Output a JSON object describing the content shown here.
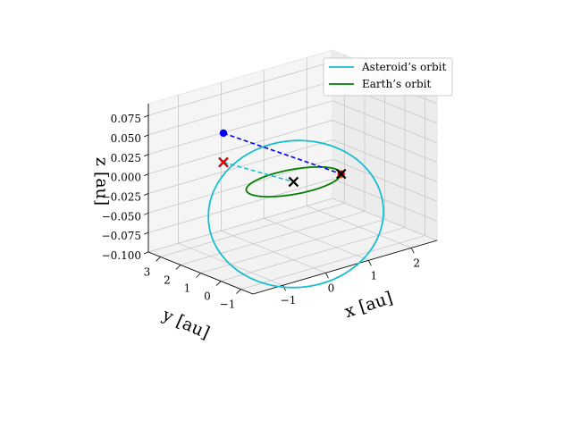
{
  "chart_data": {
    "type": "3d-line",
    "xlabel": "x [au]",
    "ylabel": "y [au]",
    "zlabel": "z [au]",
    "x_ticks": [
      "−1",
      "0",
      "1",
      "2"
    ],
    "y_ticks": [
      "−1",
      "0",
      "1",
      "2",
      "3"
    ],
    "z_ticks": [
      "0.075",
      "0.050",
      "0.025",
      "0.000",
      "−0.025",
      "−0.050",
      "−0.075",
      "−0.100"
    ],
    "xlim": [
      -1.7,
      2.6
    ],
    "ylim": [
      -1.6,
      3.6
    ],
    "zlim": [
      -0.1,
      0.09
    ],
    "grid": true,
    "legend_position": "top-right",
    "series": [
      {
        "name": "Asteroid’s orbit",
        "color": "#17becf",
        "style": "solid",
        "orbit": {
          "a": 2.06,
          "e": 0.44,
          "i_deg": 1.75,
          "node_deg": -10.5,
          "peri_deg": 78.5
        }
      },
      {
        "name": "Earth’s orbit",
        "color": "#008000",
        "style": "solid",
        "orbit": {
          "a": 1.0,
          "e": 0.0,
          "i_deg": 0.0,
          "node_deg": 0,
          "peri_deg": 0
        }
      }
    ],
    "markers": [
      {
        "label": "Sun",
        "color": "#000000",
        "symbol": "x",
        "xyz": [
          0,
          0,
          0
        ]
      },
      {
        "label": "Asteroid",
        "color": "#0000ff",
        "symbol": "o",
        "xyz": [
          -0.29,
          2.87,
          0.0373
        ]
      },
      {
        "label": "Asteroid projection",
        "color": "#000000",
        "symbol": "x",
        "xyz": [
          -0.29,
          2.87,
          0.0
        ]
      },
      {
        "label": "Earth",
        "color": "#ff0000",
        "symbol": "o",
        "xyz": [
          0.91,
          -0.43,
          0.0
        ]
      },
      {
        "label": "Earth marker",
        "color": "#000000",
        "symbol": "x",
        "xyz": [
          0.91,
          -0.43,
          0.0
        ]
      },
      {
        "label": "Ascending node",
        "color": "#ff0000",
        "symbol": "x",
        "xyz": [
          -0.29,
          2.87,
          0.0
        ]
      }
    ],
    "lines": [
      {
        "from": "Asteroid",
        "to": "Earth",
        "color": "#0000ff",
        "style": "dashed"
      },
      {
        "from": "Asteroid projection",
        "to": "Sun",
        "color": "#17becf",
        "style": "dashed"
      }
    ]
  }
}
